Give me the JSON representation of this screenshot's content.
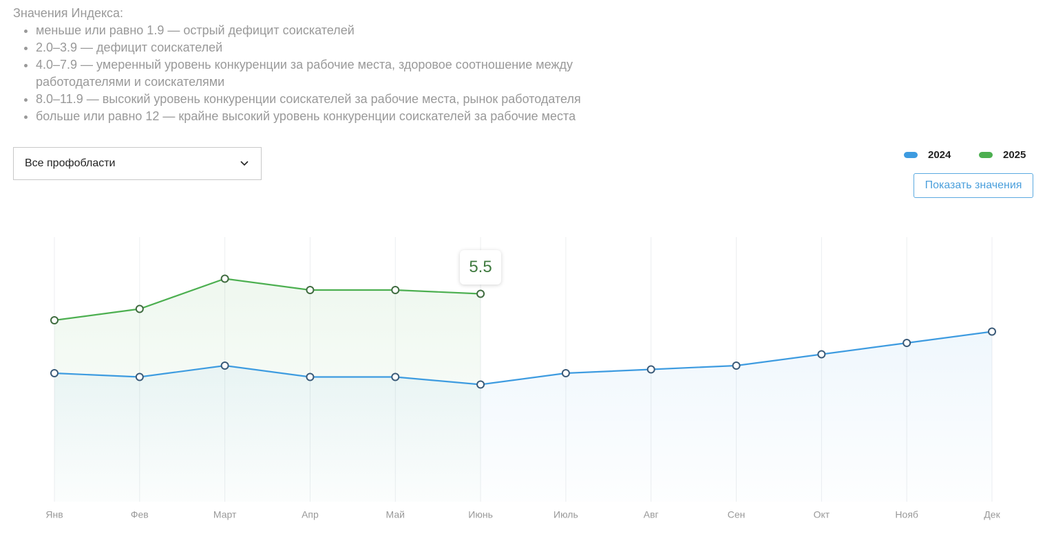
{
  "info": {
    "title": "Значения Индекса:",
    "items": [
      "меньше или равно 1.9 — острый дефицит соискателей",
      "2.0–3.9 — дефицит соискателей",
      "4.0–7.9 — умеренный уровень конкуренции за рабочие места, здоровое соотношение между работодателями и соискателями",
      "8.0–11.9 — высокий уровень конкуренции соискателей за рабочие места, рынок работодателя",
      "больше или равно 12 — крайне высокий уровень конкуренции соискателей за рабочие места"
    ]
  },
  "filter": "Все профобласти",
  "button": "Показать значения",
  "chart_data": {
    "type": "line",
    "categories": [
      "Янв",
      "Фев",
      "Март",
      "Апр",
      "Май",
      "Июнь",
      "Июль",
      "Авг",
      "Сен",
      "Окт",
      "Нояб",
      "Дек"
    ],
    "series": [
      {
        "name": "2024",
        "color": "#3d9be0",
        "values": [
          3.4,
          3.3,
          3.6,
          3.3,
          3.3,
          3.1,
          3.4,
          3.5,
          3.6,
          3.9,
          4.2,
          4.5
        ]
      },
      {
        "name": "2025",
        "color": "#4caf50",
        "values": [
          4.8,
          5.1,
          5.9,
          5.6,
          5.6,
          5.5,
          null,
          null,
          null,
          null,
          null,
          null
        ]
      }
    ],
    "ylim": [
      0,
      7
    ],
    "grid": true
  }
}
